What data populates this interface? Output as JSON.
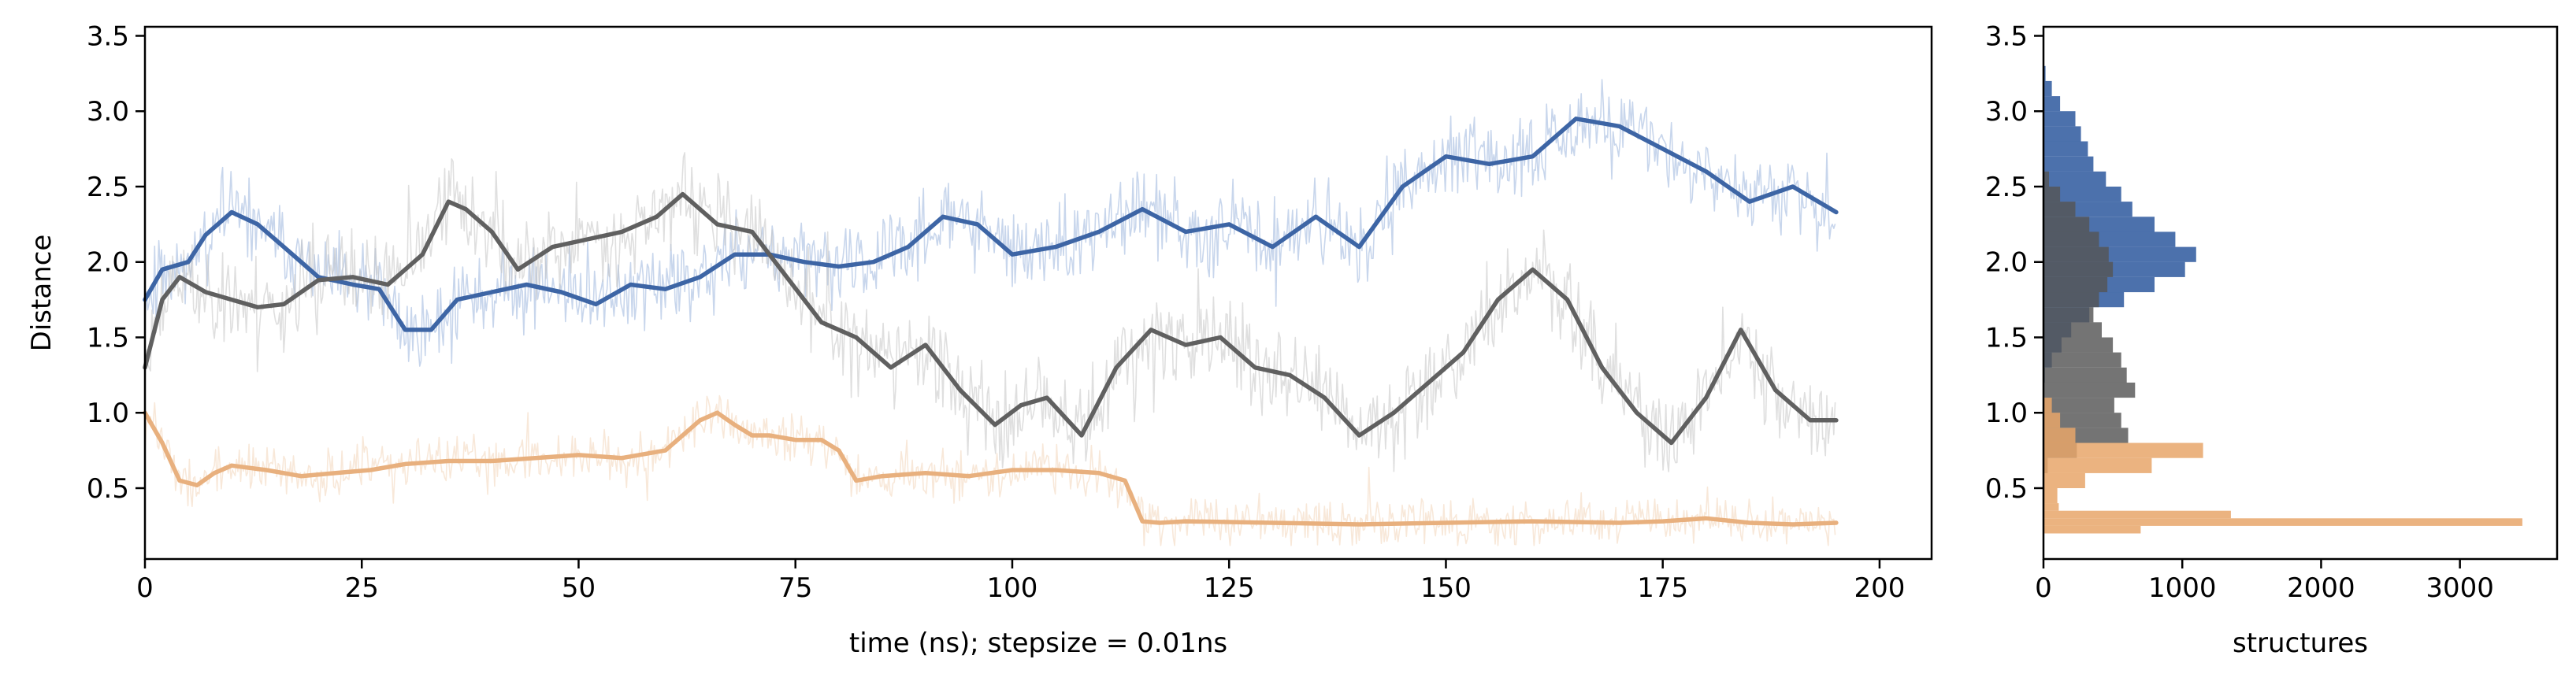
{
  "chart_data": [
    {
      "type": "line",
      "xlabel": "time (ns); stepsize = 0.01ns",
      "ylabel": "Distance",
      "xlim": [
        0,
        206
      ],
      "ylim": [
        0.03,
        3.56
      ],
      "xticks": [
        0,
        25,
        50,
        75,
        100,
        125,
        150,
        175,
        200
      ],
      "yticks": [
        0.5,
        1.0,
        1.5,
        2.0,
        2.5,
        3.0,
        3.5
      ],
      "ytick_labels": [
        "0.5",
        "1.0",
        "1.5",
        "2.0",
        "2.5",
        "3.0",
        "3.5"
      ],
      "grid": false,
      "series": [
        {
          "color": "#3d65a5",
          "raw_color": "#9bb4dc",
          "noise": 0.22,
          "seed": 11,
          "x": [
            0,
            2,
            5,
            7,
            10,
            13,
            16,
            20,
            24,
            27,
            30,
            33,
            36,
            40,
            44,
            48,
            52,
            56,
            60,
            64,
            68,
            72,
            76,
            80,
            84,
            88,
            92,
            96,
            100,
            105,
            110,
            115,
            120,
            125,
            130,
            135,
            140,
            145,
            150,
            155,
            160,
            165,
            170,
            175,
            180,
            185,
            190,
            195
          ],
          "values": [
            1.75,
            1.95,
            2.0,
            2.18,
            2.33,
            2.25,
            2.1,
            1.9,
            1.85,
            1.82,
            1.55,
            1.55,
            1.75,
            1.8,
            1.85,
            1.8,
            1.72,
            1.85,
            1.82,
            1.9,
            2.05,
            2.05,
            2.0,
            1.97,
            2.0,
            2.1,
            2.3,
            2.25,
            2.05,
            2.1,
            2.2,
            2.35,
            2.2,
            2.25,
            2.1,
            2.3,
            2.1,
            2.5,
            2.7,
            2.65,
            2.7,
            2.95,
            2.9,
            2.75,
            2.6,
            2.4,
            2.5,
            2.33
          ]
        },
        {
          "color": "#606060",
          "raw_color": "#c4c4c4",
          "noise": 0.25,
          "seed": 23,
          "x": [
            0,
            2,
            4,
            7,
            10,
            13,
            16,
            20,
            24,
            28,
            32,
            35,
            37,
            40,
            43,
            47,
            51,
            55,
            59,
            62,
            66,
            70,
            74,
            78,
            82,
            86,
            90,
            94,
            98,
            101,
            104,
            108,
            112,
            116,
            120,
            124,
            128,
            132,
            136,
            140,
            144,
            148,
            152,
            156,
            160,
            164,
            168,
            172,
            176,
            180,
            184,
            188,
            192,
            195
          ],
          "values": [
            1.3,
            1.75,
            1.9,
            1.8,
            1.75,
            1.7,
            1.72,
            1.88,
            1.9,
            1.85,
            2.05,
            2.4,
            2.35,
            2.2,
            1.95,
            2.1,
            2.15,
            2.2,
            2.3,
            2.45,
            2.25,
            2.2,
            1.9,
            1.6,
            1.5,
            1.3,
            1.45,
            1.15,
            0.92,
            1.05,
            1.1,
            0.85,
            1.3,
            1.55,
            1.45,
            1.5,
            1.3,
            1.25,
            1.1,
            0.85,
            1.0,
            1.2,
            1.4,
            1.75,
            1.95,
            1.75,
            1.3,
            1.0,
            0.8,
            1.1,
            1.55,
            1.15,
            0.95,
            0.95
          ]
        },
        {
          "color": "#e8b07e",
          "raw_color": "#f3d5ba",
          "noise": 0.13,
          "seed": 37,
          "x": [
            0,
            2,
            4,
            6,
            8,
            10,
            14,
            18,
            22,
            26,
            30,
            35,
            40,
            45,
            50,
            55,
            60,
            64,
            66,
            68,
            70,
            72,
            75,
            78,
            80,
            82,
            85,
            90,
            95,
            100,
            105,
            110,
            113,
            115,
            117,
            120,
            130,
            140,
            150,
            160,
            170,
            175,
            180,
            185,
            190,
            195
          ],
          "values": [
            1.0,
            0.8,
            0.55,
            0.52,
            0.6,
            0.65,
            0.62,
            0.58,
            0.6,
            0.62,
            0.66,
            0.68,
            0.68,
            0.7,
            0.72,
            0.7,
            0.75,
            0.95,
            1.0,
            0.92,
            0.85,
            0.85,
            0.82,
            0.82,
            0.75,
            0.55,
            0.58,
            0.6,
            0.58,
            0.62,
            0.62,
            0.6,
            0.55,
            0.28,
            0.27,
            0.28,
            0.27,
            0.26,
            0.27,
            0.28,
            0.27,
            0.28,
            0.3,
            0.27,
            0.26,
            0.27
          ]
        }
      ]
    },
    {
      "type": "bar",
      "orientation": "horizontal",
      "xlabel": "structures",
      "xlim": [
        0,
        3700
      ],
      "ylim": [
        0.03,
        3.56
      ],
      "xticks": [
        0,
        1000,
        2000,
        3000
      ],
      "yticks": [
        0.5,
        1.0,
        1.5,
        2.0,
        2.5,
        3.0,
        3.5
      ],
      "ytick_labels": [
        "0.5",
        "1.0",
        "1.5",
        "2.0",
        "2.5",
        "3.0",
        "3.5"
      ],
      "series": [
        {
          "color": "#3d65a5",
          "opacity": 0.92,
          "bins": [
            [
              1.2,
              1.3,
              10
            ],
            [
              1.3,
              1.4,
              60
            ],
            [
              1.4,
              1.5,
              130
            ],
            [
              1.5,
              1.6,
              200
            ],
            [
              1.6,
              1.7,
              330
            ],
            [
              1.7,
              1.8,
              580
            ],
            [
              1.8,
              1.9,
              800
            ],
            [
              1.9,
              2.0,
              1020
            ],
            [
              2.0,
              2.1,
              1100
            ],
            [
              2.1,
              2.2,
              950
            ],
            [
              2.2,
              2.3,
              800
            ],
            [
              2.3,
              2.4,
              640
            ],
            [
              2.4,
              2.5,
              560
            ],
            [
              2.5,
              2.6,
              450
            ],
            [
              2.6,
              2.7,
              360
            ],
            [
              2.7,
              2.8,
              320
            ],
            [
              2.8,
              2.9,
              270
            ],
            [
              2.9,
              3.0,
              230
            ],
            [
              3.0,
              3.1,
              120
            ],
            [
              3.1,
              3.2,
              60
            ],
            [
              3.2,
              3.3,
              15
            ]
          ]
        },
        {
          "color": "#555555",
          "opacity": 0.82,
          "bins": [
            [
              0.6,
              0.7,
              30
            ],
            [
              0.7,
              0.8,
              240
            ],
            [
              0.8,
              0.9,
              610
            ],
            [
              0.9,
              1.0,
              560
            ],
            [
              1.0,
              1.1,
              510
            ],
            [
              1.1,
              1.2,
              660
            ],
            [
              1.2,
              1.3,
              600
            ],
            [
              1.3,
              1.4,
              560
            ],
            [
              1.4,
              1.5,
              500
            ],
            [
              1.5,
              1.6,
              420
            ],
            [
              1.6,
              1.7,
              360
            ],
            [
              1.7,
              1.8,
              400
            ],
            [
              1.8,
              1.9,
              460
            ],
            [
              1.9,
              2.0,
              500
            ],
            [
              2.0,
              2.1,
              470
            ],
            [
              2.1,
              2.2,
              400
            ],
            [
              2.2,
              2.3,
              330
            ],
            [
              2.3,
              2.4,
              230
            ],
            [
              2.4,
              2.5,
              120
            ],
            [
              2.5,
              2.6,
              40
            ]
          ]
        },
        {
          "color": "#e8a66a",
          "opacity": 0.85,
          "bins": [
            [
              0.2,
              0.25,
              700
            ],
            [
              0.25,
              0.3,
              3450
            ],
            [
              0.3,
              0.35,
              1350
            ],
            [
              0.35,
              0.4,
              110
            ],
            [
              0.4,
              0.5,
              100
            ],
            [
              0.5,
              0.6,
              300
            ],
            [
              0.6,
              0.7,
              780
            ],
            [
              0.7,
              0.8,
              1150
            ],
            [
              0.8,
              0.9,
              230
            ],
            [
              0.9,
              1.0,
              120
            ],
            [
              1.0,
              1.1,
              60
            ]
          ]
        }
      ]
    }
  ]
}
